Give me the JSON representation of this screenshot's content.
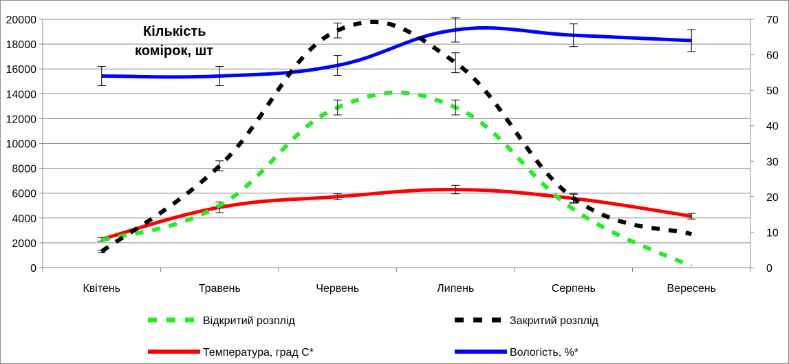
{
  "chart_data": {
    "type": "line",
    "title": "",
    "annotation": [
      "Кількість",
      "комірок, шт"
    ],
    "categories": [
      "Квітень",
      "Травень",
      "Червень",
      "Липень",
      "Серпень",
      "Вересень"
    ],
    "y_left": {
      "min": 0,
      "max": 20000,
      "step": 2000,
      "ticks": [
        "0",
        "2000",
        "4000",
        "6000",
        "8000",
        "10000",
        "12000",
        "14000",
        "16000",
        "18000",
        "20000"
      ]
    },
    "y_right": {
      "min": 0,
      "max": 70,
      "step": 10,
      "ticks": [
        "0",
        "10",
        "20",
        "30",
        "40",
        "50",
        "60",
        "70"
      ]
    },
    "grid": true,
    "legend_position": "bottom",
    "series": [
      {
        "name": "Відкритий розплід",
        "axis": "left",
        "style": "dashed",
        "color": "#22ee22",
        "values": [
          2200,
          5000,
          12900,
          12900,
          4700,
          100
        ],
        "error": [
          0,
          0,
          600,
          600,
          0,
          0
        ]
      },
      {
        "name": "Закритий розплід",
        "axis": "left",
        "style": "dashed",
        "color": "#000000",
        "values": [
          1300,
          8200,
          19100,
          16500,
          5600,
          2700
        ],
        "error": [
          100,
          400,
          600,
          800,
          400,
          0
        ]
      },
      {
        "name": "Температура, град С*",
        "axis": "right",
        "style": "solid",
        "color": "#ff0000",
        "values": [
          8,
          17,
          20,
          22,
          19.5,
          14.5
        ],
        "error": [
          0.5,
          1.5,
          0.8,
          1.2,
          1.2,
          0.8
        ]
      },
      {
        "name": "Вологість, %*",
        "axis": "right",
        "style": "solid",
        "color": "#0000ff",
        "values": [
          54,
          54,
          57,
          67,
          65.5,
          64
        ],
        "error": [
          2.7,
          2.7,
          2.8,
          3.4,
          3.2,
          3.1
        ]
      }
    ]
  }
}
